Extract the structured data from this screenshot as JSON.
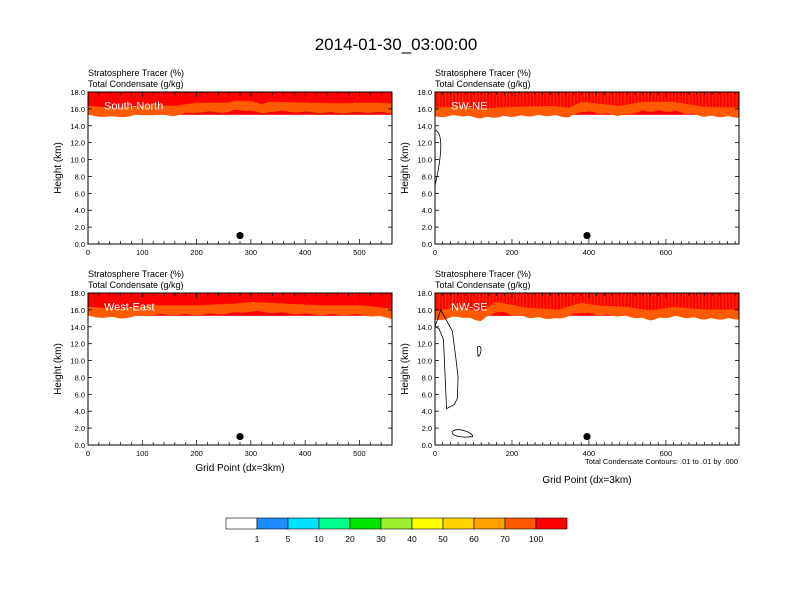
{
  "title": "2014-01-30_03:00:00",
  "colors": {
    "levels": [
      "#ffffff",
      "#1e8cff",
      "#00e1ff",
      "#00ff8c",
      "#00e600",
      "#a0f032",
      "#ffff00",
      "#ffd200",
      "#ffa000",
      "#ff5a00",
      "#ff0000"
    ]
  },
  "colorbar": {
    "labels": [
      "1",
      "5",
      "10",
      "20",
      "30",
      "40",
      "50",
      "60",
      "70",
      "100"
    ]
  },
  "contour_note": "Total Condensate Contours: .01 to .01 by .000",
  "chart_data": [
    {
      "type": "heatmap",
      "label": "South-North",
      "subtitles": [
        "Stratosphere Tracer   (%)",
        "Total Condensate   (g/kg)"
      ],
      "ylabel": "Height (km)",
      "xlabel": "",
      "xlim": [
        0,
        560
      ],
      "ylim": [
        0,
        18
      ],
      "xticks": [
        "0",
        "100",
        "200",
        "300",
        "400",
        "500"
      ],
      "yticks": [
        "0.0",
        "2.0",
        "4.0",
        "6.0",
        "8.0",
        "10.0",
        "12.0",
        "14.0",
        "16.0",
        "18.0"
      ],
      "tropopause_km": [
        [
          0,
          15.8
        ],
        [
          50,
          15.6
        ],
        [
          110,
          15.9
        ],
        [
          160,
          15.8
        ],
        [
          200,
          16.2
        ],
        [
          260,
          16.2
        ],
        [
          270,
          16.4
        ],
        [
          300,
          16.4
        ],
        [
          320,
          16.0
        ],
        [
          335,
          16.3
        ],
        [
          400,
          16.2
        ],
        [
          460,
          16.1
        ],
        [
          520,
          16.2
        ],
        [
          560,
          16.1
        ]
      ],
      "marker": {
        "x": 280,
        "y": 1.0
      }
    },
    {
      "type": "heatmap",
      "label": "SW-NE",
      "subtitles": [
        "Stratosphere Tracer   (%)",
        "Total Condensate   (g/kg)"
      ],
      "ylabel": "Height (km)",
      "xlabel": "",
      "xlim": [
        0,
        790
      ],
      "ylim": [
        0,
        18
      ],
      "xticks": [
        "0",
        "200",
        "400",
        "600"
      ],
      "yticks": [
        "0.0",
        "2.0",
        "4.0",
        "6.0",
        "8.0",
        "10.0",
        "12.0",
        "14.0",
        "16.0",
        "18.0"
      ],
      "tropopause_km": [
        [
          0,
          15.6
        ],
        [
          60,
          15.8
        ],
        [
          120,
          15.5
        ],
        [
          200,
          15.7
        ],
        [
          300,
          15.8
        ],
        [
          350,
          15.6
        ],
        [
          380,
          16.3
        ],
        [
          420,
          16.1
        ],
        [
          480,
          15.8
        ],
        [
          540,
          16.3
        ],
        [
          620,
          16.3
        ],
        [
          700,
          15.7
        ],
        [
          790,
          15.6
        ]
      ],
      "marker": {
        "x": 395,
        "y": 1.0
      }
    },
    {
      "type": "heatmap",
      "label": "West-East",
      "subtitles": [
        "Stratosphere Tracer   (%)",
        "Total Condensate   (g/kg)"
      ],
      "ylabel": "Height (km)",
      "xlabel": "Grid Point (dx=3km)",
      "xlim": [
        0,
        560
      ],
      "ylim": [
        0,
        18
      ],
      "xticks": [
        "0",
        "100",
        "200",
        "300",
        "400",
        "500"
      ],
      "yticks": [
        "0.0",
        "2.0",
        "4.0",
        "6.0",
        "8.0",
        "10.0",
        "12.0",
        "14.0",
        "16.0",
        "18.0"
      ],
      "tropopause_km": [
        [
          0,
          15.8
        ],
        [
          60,
          15.6
        ],
        [
          120,
          16.0
        ],
        [
          200,
          16.0
        ],
        [
          270,
          16.2
        ],
        [
          300,
          16.4
        ],
        [
          360,
          16.2
        ],
        [
          430,
          16.0
        ],
        [
          500,
          16.0
        ],
        [
          560,
          15.6
        ]
      ],
      "marker": {
        "x": 280,
        "y": 1.0
      }
    },
    {
      "type": "heatmap",
      "label": "NW-SE",
      "subtitles": [
        "Stratosphere Tracer   (%)",
        "Total Condensate   (g/kg)"
      ],
      "ylabel": "Height (km)",
      "xlabel": "Grid Point (dx=3km)",
      "xlim": [
        0,
        790
      ],
      "ylim": [
        0,
        18
      ],
      "xticks": [
        "0",
        "200",
        "400",
        "600"
      ],
      "yticks": [
        "0.0",
        "2.0",
        "4.0",
        "6.0",
        "8.0",
        "10.0",
        "12.0",
        "14.0",
        "16.0",
        "18.0"
      ],
      "tropopause_km": [
        [
          0,
          15.3
        ],
        [
          60,
          15.8
        ],
        [
          120,
          15.3
        ],
        [
          160,
          16.4
        ],
        [
          240,
          15.7
        ],
        [
          320,
          15.5
        ],
        [
          380,
          16.3
        ],
        [
          420,
          16.0
        ],
        [
          500,
          15.8
        ],
        [
          560,
          15.4
        ],
        [
          620,
          15.8
        ],
        [
          700,
          15.5
        ],
        [
          790,
          15.5
        ]
      ],
      "marker": {
        "x": 395,
        "y": 1.0
      }
    }
  ]
}
